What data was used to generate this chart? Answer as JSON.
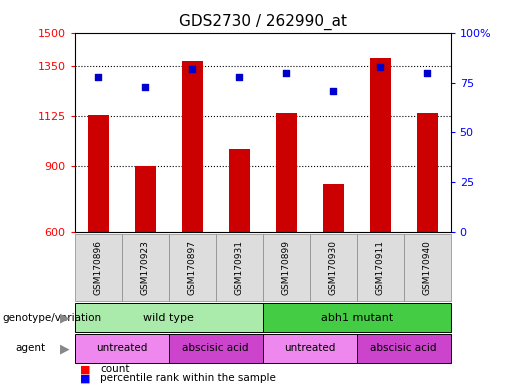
{
  "title": "GDS2730 / 262990_at",
  "samples": [
    "GSM170896",
    "GSM170923",
    "GSM170897",
    "GSM170931",
    "GSM170899",
    "GSM170930",
    "GSM170911",
    "GSM170940"
  ],
  "counts": [
    1130,
    900,
    1370,
    975,
    1140,
    820,
    1385,
    1140
  ],
  "percentiles": [
    78,
    73,
    82,
    78,
    80,
    71,
    83,
    80
  ],
  "bar_color": "#cc0000",
  "dot_color": "#0000cc",
  "ylim_left": [
    600,
    1500
  ],
  "ylim_right": [
    0,
    100
  ],
  "yticks_left": [
    600,
    900,
    1125,
    1350,
    1500
  ],
  "yticks_right": [
    0,
    25,
    50,
    75,
    100
  ],
  "ytick_labels_right": [
    "0",
    "25",
    "50",
    "75",
    "100%"
  ],
  "grid_values": [
    900,
    1125,
    1350
  ],
  "genotype_groups": [
    {
      "label": "wild type",
      "start": 0,
      "end": 4,
      "color": "#aaeaaa"
    },
    {
      "label": "abh1 mutant",
      "start": 4,
      "end": 8,
      "color": "#44cc44"
    }
  ],
  "agent_groups": [
    {
      "label": "untreated",
      "start": 0,
      "end": 2,
      "color": "#ee88ee"
    },
    {
      "label": "abscisic acid",
      "start": 2,
      "end": 4,
      "color": "#cc44cc"
    },
    {
      "label": "untreated",
      "start": 4,
      "end": 6,
      "color": "#ee88ee"
    },
    {
      "label": "abscisic acid",
      "start": 6,
      "end": 8,
      "color": "#cc44cc"
    }
  ],
  "legend_count_label": "count",
  "legend_percentile_label": "percentile rank within the sample",
  "genotype_label": "genotype/variation",
  "agent_label": "agent",
  "title_fontsize": 11,
  "bar_width": 0.45
}
